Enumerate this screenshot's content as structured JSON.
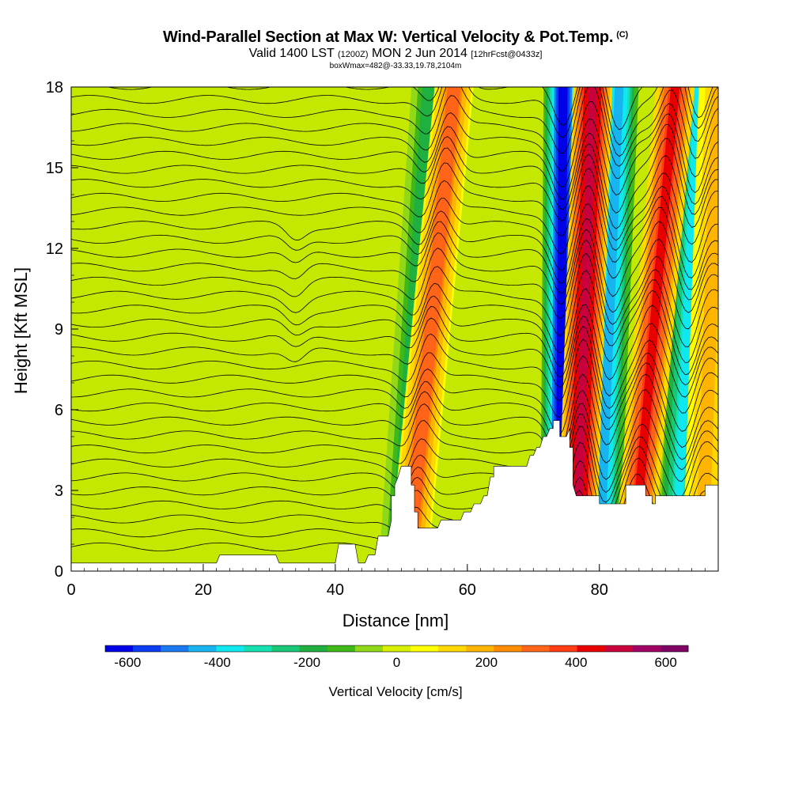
{
  "header": {
    "title": "Wind-Parallel Section at Max W: Vertical Velocity & Pot.Temp.",
    "copyright": "(C)",
    "valid_prefix": "Valid 1400 LST",
    "valid_utc": "(1200Z)",
    "valid_date": "MON 2 Jun 2014",
    "forecast": "[12hrFcst@0433z]",
    "box_info": "boxWmax=482@-33.33,19.78,2104m"
  },
  "chart_data": {
    "type": "heatmap",
    "xlabel": "Distance [nm]",
    "ylabel": "Height [Kft MSL]",
    "xlim": [
      0,
      98
    ],
    "ylim": [
      0,
      18
    ],
    "x_ticks": [
      0,
      20,
      40,
      60,
      80
    ],
    "y_ticks": [
      0,
      3,
      6,
      9,
      12,
      15,
      18
    ],
    "colorbar": {
      "label": "Vertical Velocity [cm/s]",
      "range": [
        -650,
        650
      ],
      "ticks": [
        -600,
        -400,
        -200,
        0,
        200,
        400,
        600
      ],
      "colors": [
        "#0000e8",
        "#0a3cf2",
        "#1a78f0",
        "#18b4f0",
        "#10e8f0",
        "#14e0b0",
        "#18c878",
        "#20b040",
        "#40b818",
        "#90d818",
        "#d8f000",
        "#ffff00",
        "#ffd800",
        "#ffb400",
        "#ff8c00",
        "#ff6418",
        "#ff3c14",
        "#e80000",
        "#c8003c",
        "#a00064",
        "#800064"
      ]
    },
    "updrafts": [
      {
        "x_bottom": 51,
        "x_top": 58,
        "peak_cm_s": 320
      },
      {
        "x_bottom": 76.5,
        "x_top": 79,
        "peak_cm_s": 520
      },
      {
        "x_bottom": 85,
        "x_top": 91.5,
        "peak_cm_s": 420
      },
      {
        "x_bottom": 95.5,
        "x_top": 98,
        "peak_cm_s": 180
      }
    ],
    "downdrafts": [
      {
        "x_bottom": 49.5,
        "x_top": 54.5,
        "peak_cm_s": -200
      },
      {
        "x_bottom": 74,
        "x_top": 74.5,
        "peak_cm_s": -600
      },
      {
        "x_bottom": 80,
        "x_top": 83,
        "peak_cm_s": -450
      },
      {
        "x_bottom": 91.5,
        "x_top": 95,
        "peak_cm_s": -350
      }
    ],
    "terrain_kft": [
      [
        0,
        0.3
      ],
      [
        22,
        0.3
      ],
      [
        22.5,
        0.6
      ],
      [
        31,
        0.6
      ],
      [
        31.5,
        0.3
      ],
      [
        40,
        0.3
      ],
      [
        40.5,
        1.0
      ],
      [
        43,
        1.0
      ],
      [
        43.5,
        0.3
      ],
      [
        44.5,
        0.3
      ],
      [
        45,
        0.6
      ],
      [
        46,
        0.6
      ],
      [
        46.5,
        1.3
      ],
      [
        48,
        1.3
      ],
      [
        48.5,
        1.9
      ],
      [
        48.5,
        2.8
      ],
      [
        49,
        2.8
      ],
      [
        49,
        3.2
      ],
      [
        49.5,
        3.5
      ],
      [
        50,
        3.9
      ],
      [
        51.5,
        3.9
      ],
      [
        51.5,
        3.2
      ],
      [
        52,
        3.2
      ],
      [
        52,
        2.2
      ],
      [
        52.5,
        2.2
      ],
      [
        52.5,
        1.6
      ],
      [
        55.5,
        1.6
      ],
      [
        56,
        1.9
      ],
      [
        59,
        1.9
      ],
      [
        59.5,
        2.2
      ],
      [
        60.5,
        2.2
      ],
      [
        61,
        2.5
      ],
      [
        62,
        2.5
      ],
      [
        62.5,
        2.8
      ],
      [
        63,
        2.8
      ],
      [
        63.5,
        3.5
      ],
      [
        64,
        3.5
      ],
      [
        64,
        3.9
      ],
      [
        69,
        3.9
      ],
      [
        69.5,
        4.3
      ],
      [
        70,
        4.3
      ],
      [
        70.5,
        4.6
      ],
      [
        71,
        4.6
      ],
      [
        71.5,
        5.0
      ],
      [
        72,
        5.0
      ],
      [
        72.5,
        5.3
      ],
      [
        73,
        5.3
      ],
      [
        73,
        5.6
      ],
      [
        74,
        5.6
      ],
      [
        74,
        5.0
      ],
      [
        75,
        5.0
      ],
      [
        75.5,
        5.3
      ],
      [
        75.5,
        4.6
      ],
      [
        76,
        4.6
      ],
      [
        76,
        3.2
      ],
      [
        76.5,
        2.8
      ],
      [
        80,
        2.8
      ],
      [
        80,
        2.5
      ],
      [
        84,
        2.5
      ],
      [
        84,
        3.2
      ],
      [
        87,
        3.2
      ],
      [
        87,
        2.8
      ],
      [
        88,
        2.8
      ],
      [
        88,
        2.5
      ],
      [
        88.5,
        2.5
      ],
      [
        88.5,
        2.8
      ],
      [
        96,
        2.8
      ],
      [
        96,
        3.2
      ],
      [
        98,
        3.2
      ],
      [
        98,
        0
      ]
    ],
    "theta_contours": {
      "units": "K",
      "interval": 1,
      "contours_drawn": 34
    }
  }
}
